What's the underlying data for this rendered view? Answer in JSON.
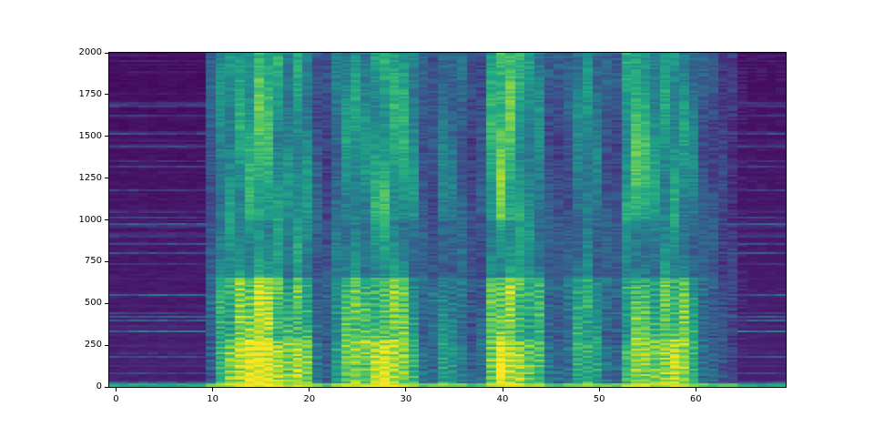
{
  "figure": {
    "title": "",
    "background_color": "#ffffff",
    "axes_edge_color": "#000000",
    "tick_color": "#000000"
  },
  "chart_data": {
    "type": "heatmap",
    "subtype": "spectrogram",
    "title": "",
    "xlabel": "",
    "ylabel": "",
    "xlim": [
      -0.705,
      69.3
    ],
    "ylim": [
      0,
      2000
    ],
    "x_ticks": [
      0,
      10,
      20,
      30,
      40,
      50,
      60
    ],
    "y_ticks": [
      0,
      250,
      500,
      750,
      1000,
      1250,
      1500,
      1750,
      2000
    ],
    "grid": false,
    "legend": "none",
    "colormap": {
      "name": "viridis",
      "stops": [
        [
          0.0,
          "#440154"
        ],
        [
          0.1,
          "#482475"
        ],
        [
          0.2,
          "#414487"
        ],
        [
          0.3,
          "#355f8d"
        ],
        [
          0.4,
          "#2a788e"
        ],
        [
          0.5,
          "#21918c"
        ],
        [
          0.6,
          "#22a884"
        ],
        [
          0.7,
          "#44bf70"
        ],
        [
          0.8,
          "#7ad151"
        ],
        [
          0.9,
          "#bddf26"
        ],
        [
          1.0,
          "#fde725"
        ]
      ]
    },
    "description": "Speech spectrogram: dark silence for t<10 and t>65, voiced speech 10-64 with harmonic striations, bright yellow low-frequency energy bursts around t=13-20, 24-31, 40-44, 57-59, strong full-height columns near t=40 and t=54, thin bright line along f=0.",
    "time_bins": 70,
    "freq_rows": 184,
    "noise_seed": 42,
    "activity": [
      0,
      0,
      0,
      0,
      0,
      0,
      0,
      0,
      0,
      0,
      0.45,
      0.75,
      0.85,
      0.9,
      0.95,
      1,
      0.95,
      0.9,
      0.8,
      0.9,
      0.8,
      0.5,
      0.4,
      0.65,
      0.8,
      0.85,
      0.8,
      0.9,
      0.95,
      0.9,
      0.85,
      0.7,
      0.5,
      0.45,
      0.65,
      0.6,
      0.55,
      0.4,
      0.45,
      0.85,
      1,
      0.95,
      0.9,
      0.8,
      0.75,
      0.5,
      0.45,
      0.5,
      0.7,
      0.75,
      0.65,
      0.5,
      0.45,
      0.8,
      0.9,
      0.85,
      0.8,
      0.85,
      0.9,
      0.85,
      0.7,
      0.5,
      0.45,
      0.35,
      0.3,
      0.1,
      0.05,
      0.04,
      0.04,
      0.04
    ],
    "high_freq_boost": [
      0,
      0,
      0,
      0,
      0,
      0,
      0,
      0,
      0,
      0,
      0.6,
      0.5,
      0.45,
      0.5,
      0.55,
      0.7,
      0.7,
      0.5,
      0.4,
      0.45,
      0.5,
      0.35,
      0.3,
      0.45,
      0.5,
      0.5,
      0.45,
      0.55,
      0.6,
      0.6,
      0.7,
      0.7,
      0.45,
      0.4,
      0.55,
      0.5,
      0.45,
      0.35,
      0.4,
      0.75,
      0.9,
      0.85,
      0.6,
      0.5,
      0.45,
      0.35,
      0.35,
      0.4,
      0.5,
      0.55,
      0.5,
      0.4,
      0.35,
      0.75,
      0.9,
      0.85,
      0.6,
      0.5,
      0.45,
      0.4,
      0.45,
      0.4,
      0.35,
      0.3,
      0.3,
      0.05,
      0,
      0,
      0,
      0
    ],
    "low_freq_boost": [
      0,
      0,
      0,
      0,
      0,
      0,
      0,
      0,
      0,
      0,
      0.3,
      0.7,
      0.85,
      0.95,
      1,
      1,
      1,
      0.95,
      0.85,
      0.95,
      0.9,
      0.5,
      0.45,
      0.7,
      0.85,
      0.9,
      0.85,
      0.95,
      1,
      0.95,
      0.9,
      0.75,
      0.5,
      0.45,
      0.6,
      0.6,
      0.55,
      0.45,
      0.5,
      0.8,
      0.95,
      0.9,
      0.9,
      0.9,
      0.85,
      0.55,
      0.5,
      0.55,
      0.7,
      0.7,
      0.65,
      0.5,
      0.5,
      0.7,
      0.75,
      0.8,
      0.85,
      0.95,
      1,
      0.95,
      0.7,
      0.5,
      0.45,
      0.35,
      0.3,
      0.1,
      0.05,
      0.05,
      0.05,
      0.05
    ]
  }
}
